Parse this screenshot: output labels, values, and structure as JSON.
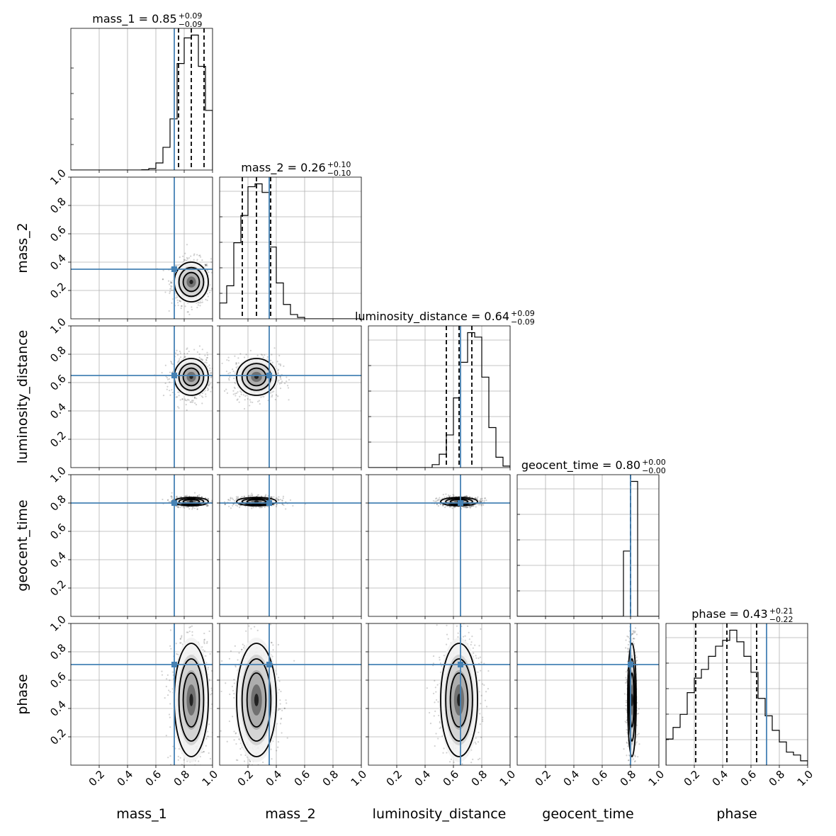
{
  "chart_data": {
    "type": "corner",
    "parameters": [
      "mass_1",
      "mass_2",
      "luminosity_distance",
      "geocent_time",
      "phase"
    ],
    "axis_range": [
      0.0,
      1.0
    ],
    "ticks": [
      0.2,
      0.4,
      0.6,
      0.8,
      1.0
    ],
    "tick_labels": [
      "0.2",
      "0.4",
      "0.6",
      "0.8",
      "1.0"
    ],
    "grid": true,
    "colors": {
      "truth": "#4682b4",
      "contours": "#000000",
      "hist": "#000000"
    },
    "truths": [
      0.73,
      0.35,
      0.65,
      0.8,
      0.71
    ],
    "titles": [
      {
        "text": "mass_1 = 0.85",
        "upper": "+0.09",
        "lower": "−0.09"
      },
      {
        "text": "mass_2 = 0.26",
        "upper": "+0.10",
        "lower": "−0.10"
      },
      {
        "text": "luminosity_distance = 0.64",
        "upper": "+0.09",
        "lower": "−0.09"
      },
      {
        "text": "geocent_time = 0.80",
        "upper": "+0.00",
        "lower": "−0.00"
      },
      {
        "text": "phase = 0.43",
        "upper": "+0.21",
        "lower": "−0.22"
      }
    ],
    "quantiles": [
      [
        0.76,
        0.85,
        0.94
      ],
      [
        0.16,
        0.26,
        0.36
      ],
      [
        0.55,
        0.64,
        0.73
      ],
      [
        0.8,
        0.8,
        0.8
      ],
      [
        0.21,
        0.43,
        0.64
      ]
    ],
    "histograms": [
      {
        "edges": [
          0.0,
          0.05,
          0.1,
          0.15,
          0.2,
          0.25,
          0.3,
          0.35,
          0.4,
          0.45,
          0.5,
          0.55,
          0.6,
          0.65,
          0.7,
          0.75,
          0.8,
          0.85,
          0.9,
          0.95,
          1.0
        ],
        "values": [
          0,
          0,
          0,
          0,
          0,
          0,
          0,
          0,
          0,
          0,
          0.002,
          0.01,
          0.05,
          0.16,
          0.36,
          0.75,
          0.93,
          0.95,
          0.73,
          0.42
        ]
      },
      {
        "edges": [
          0.0,
          0.05,
          0.1,
          0.15,
          0.2,
          0.25,
          0.3,
          0.35,
          0.4,
          0.45,
          0.5,
          0.55,
          0.6,
          0.65,
          0.7,
          0.75,
          0.8,
          0.85,
          0.9,
          0.95,
          1.0
        ],
        "values": [
          0.11,
          0.23,
          0.53,
          0.72,
          0.92,
          0.94,
          0.88,
          0.5,
          0.25,
          0.1,
          0.03,
          0.01,
          0,
          0,
          0,
          0,
          0,
          0,
          0,
          0
        ]
      },
      {
        "edges": [
          0.0,
          0.05,
          0.1,
          0.15,
          0.2,
          0.25,
          0.3,
          0.35,
          0.4,
          0.45,
          0.5,
          0.55,
          0.6,
          0.65,
          0.7,
          0.75,
          0.8,
          0.85,
          0.9,
          0.95,
          1.0
        ],
        "values": [
          0,
          0,
          0,
          0,
          0,
          0,
          0,
          0,
          0,
          0.02,
          0.09,
          0.22,
          0.47,
          0.71,
          0.91,
          0.88,
          0.61,
          0.27,
          0.07,
          0.01
        ]
      },
      {
        "edges": [
          0.0,
          0.05,
          0.1,
          0.15,
          0.2,
          0.25,
          0.3,
          0.35,
          0.4,
          0.45,
          0.5,
          0.55,
          0.6,
          0.65,
          0.7,
          0.75,
          0.8,
          0.85,
          0.9,
          0.95,
          1.0
        ],
        "values": [
          0,
          0,
          0,
          0,
          0,
          0,
          0,
          0,
          0,
          0,
          0,
          0,
          0,
          0,
          0,
          0.45,
          0.93,
          0,
          0,
          0
        ]
      },
      {
        "edges": [
          0.0,
          0.05,
          0.1,
          0.15,
          0.2,
          0.25,
          0.3,
          0.35,
          0.4,
          0.45,
          0.5,
          0.55,
          0.6,
          0.65,
          0.7,
          0.75,
          0.8,
          0.85,
          0.9,
          0.95,
          1.0
        ],
        "values": [
          0.18,
          0.26,
          0.35,
          0.5,
          0.6,
          0.66,
          0.75,
          0.82,
          0.86,
          0.93,
          0.85,
          0.75,
          0.64,
          0.46,
          0.34,
          0.24,
          0.16,
          0.09,
          0.07,
          0.03
        ]
      }
    ],
    "posterior_means": [
      0.85,
      0.26,
      0.64,
      0.81,
      0.46
    ],
    "posterior_sigmas": [
      0.06,
      0.07,
      0.065,
      0.015,
      0.2
    ]
  }
}
